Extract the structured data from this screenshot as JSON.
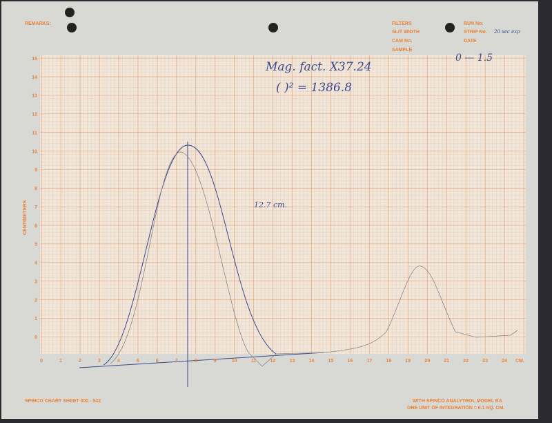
{
  "header": {
    "remarks": "REMARKS:",
    "filters": "FILTERS",
    "run_no": "RUN No.",
    "slit_width": "SLIT WIDTH",
    "strip_no": "STRIP No.",
    "strip_value": "20 sec exp",
    "cam_no": "CAM No.",
    "date": "DATE",
    "sample": "SAMPLE",
    "sample_value": "0 — 1.5"
  },
  "y_axis": {
    "label": "CENTIMETERS",
    "ticks": [
      "0",
      "1",
      "2",
      "3",
      "4",
      "5",
      "6",
      "7",
      "8",
      "9",
      "10",
      "11",
      "12",
      "13",
      "14",
      "15"
    ]
  },
  "x_axis": {
    "unit": "CM.",
    "ticks": [
      "0",
      "1",
      "2",
      "3",
      "4",
      "5",
      "6",
      "7",
      "8",
      "9",
      "10",
      "11",
      "12",
      "13",
      "14",
      "15",
      "16",
      "17",
      "18",
      "19",
      "20",
      "21",
      "22",
      "23",
      "24"
    ]
  },
  "notes": {
    "mag_factor": "Mag. fact. X37.24",
    "squared": "(  )² = 1386.8",
    "peak_height": "12.7 cm."
  },
  "footer": {
    "sheet": "SPINCO CHART SHEET 300 - 542",
    "model": "WITH SPINCO ANALYTROL MODEL RA",
    "integration": "ONE UNIT OF INTEGRATION = 0.1 SQ. CM."
  }
}
